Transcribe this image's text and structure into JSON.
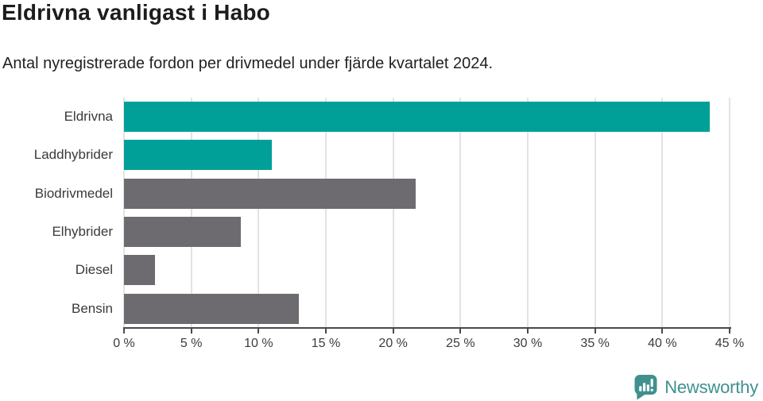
{
  "title": "Eldrivna vanligast i Habo",
  "subtitle": "Antal nyregistrerade fordon per drivmedel under fjärde kvartalet 2024.",
  "branding": {
    "name": "Newsworthy",
    "color": "#40918e"
  },
  "colors": {
    "highlight_bar": "#00a099",
    "default_bar": "#6d6b70",
    "gridline": "#e3e3e3",
    "axis": "#4a4a4a",
    "title_text": "#1d1d1d",
    "label_text": "#3a3a3a"
  },
  "chart_data": {
    "type": "bar",
    "orientation": "horizontal",
    "title": "Eldrivna vanligast i Habo",
    "subtitle": "Antal nyregistrerade fordon per drivmedel under fjärde kvartalet 2024.",
    "categories": [
      "Eldrivna",
      "Laddhybrider",
      "Biodrivmedel",
      "Elhybrider",
      "Diesel",
      "Bensin"
    ],
    "values": [
      43.5,
      11.0,
      21.7,
      8.7,
      2.3,
      13.0
    ],
    "unit": "%",
    "bar_colors": [
      "#00a099",
      "#00a099",
      "#6d6b70",
      "#6d6b70",
      "#6d6b70",
      "#6d6b70"
    ],
    "highlighted_categories": [
      "Eldrivna",
      "Laddhybrider"
    ],
    "xlabel": "",
    "ylabel": "",
    "xlim": [
      0,
      45
    ],
    "xtick_values": [
      0,
      5,
      10,
      15,
      20,
      25,
      30,
      35,
      40,
      45
    ],
    "xtick_labels": [
      "0 %",
      "5 %",
      "10 %",
      "15 %",
      "20 %",
      "25 %",
      "30 %",
      "35 %",
      "40 %",
      "45 %"
    ],
    "grid": true,
    "legend": false
  }
}
